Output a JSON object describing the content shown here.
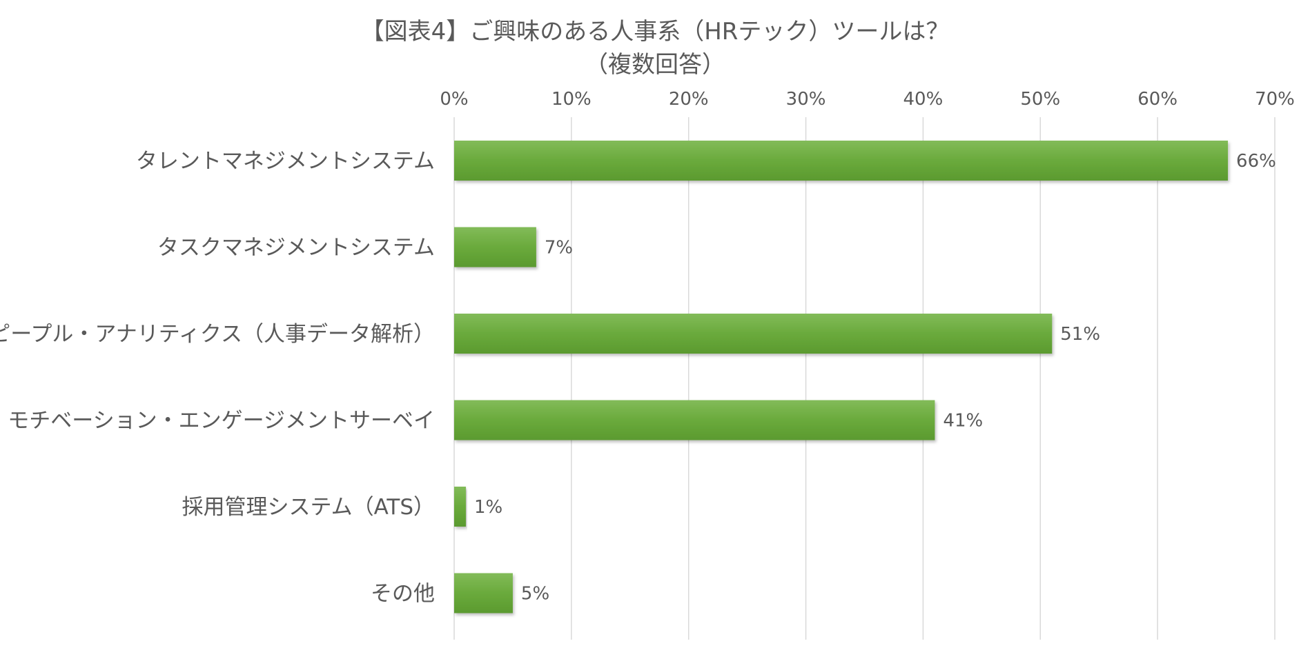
{
  "chart_data": {
    "type": "bar",
    "orientation": "horizontal",
    "title": "【図表4】ご興味のある人事系（HRテック）ツールは？",
    "subtitle": "（複数回答）",
    "categories": [
      "タレントマネジメントシステム",
      "タスクマネジメントシステム",
      "ピープル・アナリティクス（人事データ解析）",
      "モチベーション・エンゲージメントサーベイ",
      "採用管理システム（ATS）",
      "その他"
    ],
    "values": [
      66,
      7,
      51,
      41,
      1,
      5
    ],
    "data_labels": [
      "66%",
      "7%",
      "51%",
      "41%",
      "1%",
      "5%"
    ],
    "xlim": [
      0,
      70
    ],
    "x_ticks": [
      0,
      10,
      20,
      30,
      40,
      50,
      60,
      70
    ],
    "x_tick_labels": [
      "0%",
      "10%",
      "20%",
      "30%",
      "40%",
      "50%",
      "60%",
      "70%"
    ],
    "x_axis_position": "top",
    "grid": "vertical",
    "legend": "none",
    "bar_color": "#6aaa3c",
    "bar_color_light": "#82bb59",
    "bar_color_dark": "#5b9a2f",
    "grid_color": "#d9d9d9",
    "text_color": "#595959"
  }
}
